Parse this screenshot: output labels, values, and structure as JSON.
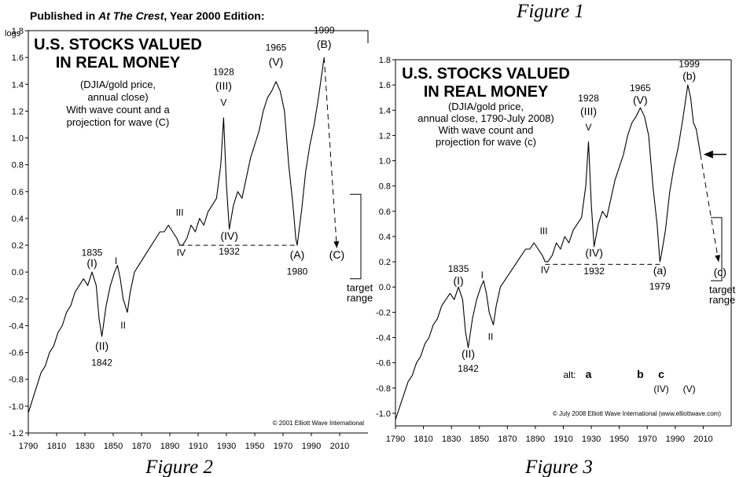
{
  "header": {
    "published_prefix": "Published in ",
    "published_pub": "At The Crest",
    "published_suffix": ", Year 2000 Edition:"
  },
  "captions": {
    "fig1": "Figure 1",
    "fig2": "Figure 2",
    "fig3": "Figure 3"
  },
  "chart_data": [
    {
      "type": "line",
      "title": "U.S. STOCKS VALUED IN REAL MONEY",
      "title_lines": [
        "U.S. STOCKS VALUED",
        "IN REAL MONEY"
      ],
      "subtitle_lines": [
        "(DJIA/gold price,",
        "annual close)",
        "With wave count and a",
        "projection for wave (C)"
      ],
      "ylabel": "logs",
      "xlim": [
        1790,
        2030
      ],
      "ylim": [
        -1.2,
        1.8
      ],
      "xticks": [
        1790,
        1810,
        1830,
        1850,
        1870,
        1890,
        1910,
        1930,
        1950,
        1970,
        1990,
        2010
      ],
      "xtick_labels": [
        "1790",
        "1810",
        "1830",
        "1850",
        "1870",
        "1890",
        "1910",
        "1930",
        "1950",
        "1970",
        "1990",
        "2010"
      ],
      "yticks": [
        -1.2,
        -1.0,
        -0.8,
        -0.6,
        -0.4,
        -0.2,
        0.0,
        0.2,
        0.4,
        0.6,
        0.8,
        1.0,
        1.2,
        1.4,
        1.6,
        1.8
      ],
      "ytick_labels": [
        "-1.2",
        "-1.0",
        "-0.8",
        "-0.6",
        "-0.4",
        "-0.2",
        "0.0",
        "0.2",
        "0.4",
        "0.6",
        "0.8",
        "1.0",
        "1.2",
        "1.4",
        "1.6",
        "1.8"
      ],
      "series": [
        {
          "x": [
            1790,
            1793,
            1796,
            1799,
            1802,
            1805,
            1808,
            1811,
            1814,
            1817,
            1820,
            1823,
            1826,
            1829,
            1832,
            1835,
            1838,
            1840,
            1842,
            1845,
            1848,
            1851,
            1853,
            1855,
            1857,
            1860,
            1862,
            1865,
            1868,
            1871,
            1874,
            1877,
            1880,
            1883,
            1886,
            1889,
            1892,
            1895,
            1897,
            1899,
            1902,
            1905,
            1908,
            1911,
            1914,
            1917,
            1920,
            1923,
            1926,
            1928,
            1930,
            1932,
            1935,
            1938,
            1941,
            1944,
            1947,
            1950,
            1953,
            1956,
            1959,
            1962,
            1965,
            1968,
            1971,
            1974,
            1977,
            1979,
            1980,
            1983,
            1986,
            1989,
            1992,
            1995,
            1997,
            1999
          ],
          "y": [
            -1.05,
            -0.95,
            -0.85,
            -0.75,
            -0.7,
            -0.6,
            -0.55,
            -0.45,
            -0.4,
            -0.3,
            -0.25,
            -0.15,
            -0.1,
            -0.05,
            -0.1,
            0.0,
            -0.1,
            -0.35,
            -0.48,
            -0.25,
            -0.1,
            0.0,
            0.05,
            -0.05,
            -0.2,
            -0.3,
            -0.15,
            0.0,
            0.05,
            0.1,
            0.15,
            0.2,
            0.25,
            0.3,
            0.3,
            0.35,
            0.3,
            0.25,
            0.2,
            0.2,
            0.25,
            0.35,
            0.3,
            0.4,
            0.35,
            0.45,
            0.5,
            0.55,
            0.8,
            1.15,
            0.65,
            0.32,
            0.5,
            0.6,
            0.55,
            0.7,
            0.85,
            0.95,
            1.05,
            1.2,
            1.3,
            1.35,
            1.42,
            1.35,
            1.2,
            0.8,
            0.5,
            0.25,
            0.2,
            0.45,
            0.75,
            0.95,
            1.1,
            1.3,
            1.45,
            1.6
          ]
        }
      ],
      "projection": {
        "x": [
          1999,
          2008
        ],
        "y": [
          1.6,
          0.18
        ]
      },
      "wave_iv_line": {
        "x": [
          1897,
          1980
        ],
        "y": [
          0.2,
          0.2
        ],
        "style": "dashed"
      },
      "target_range": {
        "y": [
          -0.05,
          0.58
        ]
      },
      "annotations": [
        {
          "text": "1835",
          "x": 1835,
          "y": 0.12,
          "size": "s"
        },
        {
          "text": "(I)",
          "x": 1835,
          "y": 0.04,
          "size": "m"
        },
        {
          "text": "I",
          "x": 1852,
          "y": 0.06,
          "size": "s"
        },
        {
          "text": "II",
          "x": 1857,
          "y": -0.42,
          "size": "s"
        },
        {
          "text": "(II)",
          "x": 1842,
          "y": -0.58,
          "size": "m"
        },
        {
          "text": "1842",
          "x": 1842,
          "y": -0.7,
          "size": "s"
        },
        {
          "text": "III",
          "x": 1897,
          "y": 0.42,
          "size": "s"
        },
        {
          "text": "IV",
          "x": 1898,
          "y": 0.12,
          "size": "s"
        },
        {
          "text": "1928",
          "x": 1928,
          "y": 1.47,
          "size": "s"
        },
        {
          "text": "(III)",
          "x": 1928,
          "y": 1.36,
          "size": "m"
        },
        {
          "text": "V",
          "x": 1928,
          "y": 1.24,
          "size": "s"
        },
        {
          "text": "(IV)",
          "x": 1932,
          "y": 0.24,
          "size": "m"
        },
        {
          "text": "1932",
          "x": 1932,
          "y": 0.13,
          "size": "s"
        },
        {
          "text": "1965",
          "x": 1965,
          "y": 1.65,
          "size": "s"
        },
        {
          "text": "(V)",
          "x": 1965,
          "y": 1.54,
          "size": "m"
        },
        {
          "text": "1999",
          "x": 1999,
          "y": 1.78,
          "size": "s"
        },
        {
          "text": "(B)",
          "x": 1999,
          "y": 1.67,
          "size": "m"
        },
        {
          "text": "(A)",
          "x": 1980,
          "y": 0.1,
          "size": "m"
        },
        {
          "text": "1980",
          "x": 1980,
          "y": -0.02,
          "size": "s"
        },
        {
          "text": "(C)",
          "x": 2008,
          "y": 0.1,
          "size": "m"
        }
      ],
      "target_label_lines": [
        "target",
        "range"
      ],
      "copyright": "© 2001 Elliott Wave International"
    },
    {
      "type": "line",
      "title": "U.S. STOCKS VALUED IN REAL MONEY",
      "title_lines": [
        "U.S. STOCKS VALUED",
        "IN REAL MONEY"
      ],
      "subtitle_lines": [
        "(DJIA/gold price,",
        "annual close, 1790-July 2008)",
        "With wave count and",
        "projection for wave (c)"
      ],
      "ylabel": "",
      "xlim": [
        1790,
        2030
      ],
      "ylim": [
        -1.1,
        1.8
      ],
      "xticks": [
        1790,
        1810,
        1830,
        1850,
        1870,
        1890,
        1910,
        1930,
        1950,
        1970,
        1990,
        2010
      ],
      "xtick_labels": [
        "1790",
        "1810",
        "1830",
        "1850",
        "1870",
        "1890",
        "1910",
        "1930",
        "1950",
        "1970",
        "1990",
        "2010"
      ],
      "yticks": [
        -1.0,
        -0.8,
        -0.6,
        -0.4,
        -0.2,
        0.0,
        0.2,
        0.4,
        0.6,
        0.8,
        1.0,
        1.2,
        1.4,
        1.6,
        1.8
      ],
      "ytick_labels": [
        "-1.0",
        "-0.8",
        "-0.6",
        "-0.4",
        "-0.2",
        "0.0",
        "0.2",
        "0.4",
        "0.6",
        "0.8",
        "1.0",
        "1.2",
        "1.4",
        "1.6",
        "1.8"
      ],
      "series": [
        {
          "x": [
            1790,
            1793,
            1796,
            1799,
            1802,
            1805,
            1808,
            1811,
            1814,
            1817,
            1820,
            1823,
            1826,
            1829,
            1832,
            1835,
            1838,
            1840,
            1842,
            1845,
            1848,
            1851,
            1853,
            1855,
            1857,
            1860,
            1862,
            1865,
            1868,
            1871,
            1874,
            1877,
            1880,
            1883,
            1886,
            1889,
            1892,
            1895,
            1897,
            1899,
            1902,
            1905,
            1908,
            1911,
            1914,
            1917,
            1920,
            1923,
            1926,
            1928,
            1930,
            1932,
            1935,
            1938,
            1941,
            1944,
            1947,
            1950,
            1953,
            1956,
            1959,
            1962,
            1965,
            1968,
            1971,
            1974,
            1977,
            1979,
            1980,
            1983,
            1986,
            1989,
            1992,
            1995,
            1997,
            1999,
            2001,
            2003,
            2005,
            2008
          ],
          "y": [
            -1.05,
            -0.95,
            -0.85,
            -0.75,
            -0.7,
            -0.6,
            -0.55,
            -0.45,
            -0.4,
            -0.3,
            -0.25,
            -0.15,
            -0.1,
            -0.05,
            -0.1,
            0.0,
            -0.1,
            -0.35,
            -0.48,
            -0.25,
            -0.1,
            0.0,
            0.05,
            -0.05,
            -0.2,
            -0.3,
            -0.15,
            0.0,
            0.05,
            0.1,
            0.15,
            0.2,
            0.25,
            0.3,
            0.3,
            0.35,
            0.3,
            0.25,
            0.2,
            0.2,
            0.25,
            0.35,
            0.3,
            0.4,
            0.35,
            0.45,
            0.5,
            0.55,
            0.8,
            1.15,
            0.65,
            0.32,
            0.5,
            0.6,
            0.55,
            0.7,
            0.85,
            0.95,
            1.05,
            1.2,
            1.3,
            1.35,
            1.42,
            1.35,
            1.2,
            0.8,
            0.5,
            0.2,
            0.25,
            0.45,
            0.75,
            0.95,
            1.1,
            1.3,
            1.45,
            1.6,
            1.5,
            1.3,
            1.25,
            1.05
          ]
        }
      ],
      "projection": {
        "x": [
          2008,
          2021
        ],
        "y": [
          1.05,
          0.2
        ]
      },
      "wave_iv_line": {
        "x": [
          1897,
          1979
        ],
        "y": [
          0.18,
          0.18
        ],
        "style": "dashed"
      },
      "target_range": {
        "y": [
          0.05,
          0.55
        ]
      },
      "arrow_y": 1.05,
      "annotations": [
        {
          "text": "1835",
          "x": 1835,
          "y": 0.12,
          "size": "s"
        },
        {
          "text": "(I)",
          "x": 1835,
          "y": 0.02,
          "size": "m"
        },
        {
          "text": "I",
          "x": 1852,
          "y": 0.07,
          "size": "s"
        },
        {
          "text": "II",
          "x": 1858,
          "y": -0.42,
          "size": "s"
        },
        {
          "text": "(II)",
          "x": 1842,
          "y": -0.56,
          "size": "m"
        },
        {
          "text": "1842",
          "x": 1842,
          "y": -0.67,
          "size": "s"
        },
        {
          "text": "III",
          "x": 1896,
          "y": 0.42,
          "size": "s"
        },
        {
          "text": "IV",
          "x": 1897,
          "y": 0.11,
          "size": "s"
        },
        {
          "text": "1928",
          "x": 1928,
          "y": 1.47,
          "size": "s"
        },
        {
          "text": "(III)",
          "x": 1928,
          "y": 1.36,
          "size": "m"
        },
        {
          "text": "V",
          "x": 1928,
          "y": 1.24,
          "size": "s"
        },
        {
          "text": "(IV)",
          "x": 1932,
          "y": 0.24,
          "size": "m"
        },
        {
          "text": "1932",
          "x": 1932,
          "y": 0.1,
          "size": "s"
        },
        {
          "text": "1965",
          "x": 1965,
          "y": 1.55,
          "size": "s"
        },
        {
          "text": "(V)",
          "x": 1965,
          "y": 1.45,
          "size": "m"
        },
        {
          "text": "1999",
          "x": 2000,
          "y": 1.74,
          "size": "s"
        },
        {
          "text": "(b)",
          "x": 2000,
          "y": 1.64,
          "size": "m"
        },
        {
          "text": "(a)",
          "x": 1979,
          "y": 0.1,
          "size": "m"
        },
        {
          "text": "1979",
          "x": 1979,
          "y": -0.02,
          "size": "s"
        },
        {
          "text": "(c)",
          "x": 2022,
          "y": 0.09,
          "size": "m"
        }
      ],
      "alt_row": {
        "label": "alt:",
        "items": [
          {
            "text": "a",
            "x": 1928
          },
          {
            "text": "b",
            "x": 1965
          },
          {
            "text": "c",
            "x": 1980
          }
        ],
        "sub_items": [
          {
            "text": "(IV)",
            "x": 1980
          },
          {
            "text": "(V)",
            "x": 2000
          }
        ]
      },
      "target_label_lines": [
        "target",
        "range"
      ],
      "copyright": "© July 2008 Elliott Wave International (www.elliottwave.com)"
    }
  ]
}
